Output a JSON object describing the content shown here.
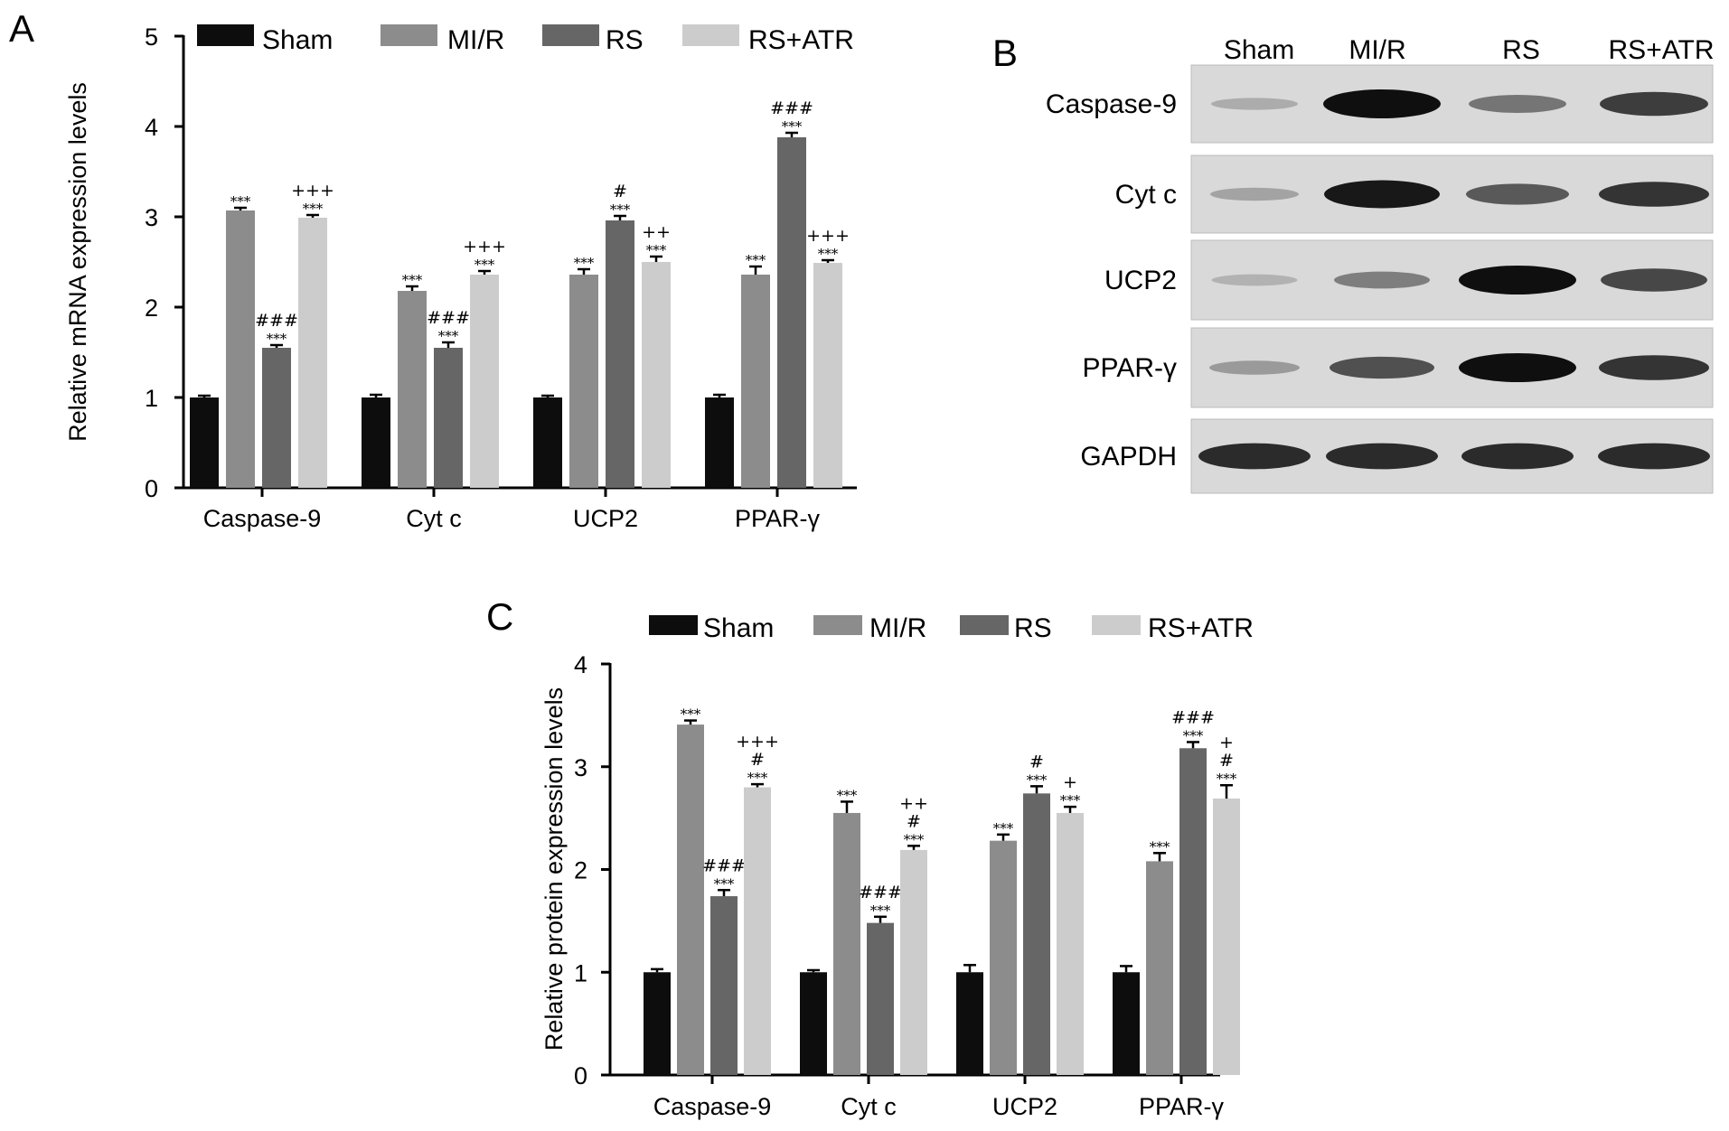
{
  "panels": {
    "a": {
      "letter": "A"
    },
    "b": {
      "letter": "B"
    },
    "c": {
      "letter": "C"
    }
  },
  "colors": {
    "Sham": "#0d0d0d",
    "MI/R": "#8c8c8c",
    "RS": "#666666",
    "RS+ATR": "#cccccc"
  },
  "blot": {
    "lanes": [
      "Sham",
      "MI/R",
      "RS",
      "RS+ATR"
    ],
    "rows": [
      {
        "label": "Caspase-9",
        "intensity": [
          0.15,
          1.0,
          0.45,
          0.75
        ]
      },
      {
        "label": "Cyt  c",
        "intensity": [
          0.2,
          0.95,
          0.6,
          0.8
        ]
      },
      {
        "label": "UCP2",
        "intensity": [
          0.12,
          0.4,
          1.0,
          0.7
        ]
      },
      {
        "label": "PPAR-γ",
        "intensity": [
          0.25,
          0.65,
          1.0,
          0.8
        ]
      },
      {
        "label": "GAPDH",
        "intensity": [
          0.85,
          0.85,
          0.85,
          0.85
        ]
      }
    ]
  },
  "chart_data": [
    {
      "type": "bar",
      "ylabel": "Relative mRNA expression levels",
      "ylim": [
        0,
        5
      ],
      "yticks": [
        0,
        1,
        2,
        3,
        4,
        5
      ],
      "categories": [
        "Caspase-9",
        "Cyt  c",
        "UCP2",
        "PPAR-γ"
      ],
      "legend": "top",
      "series": [
        {
          "name": "Sham",
          "values": [
            1.0,
            1.0,
            1.0,
            1.0
          ],
          "errors": [
            0.02,
            0.03,
            0.02,
            0.03
          ],
          "annotations": [
            [],
            [],
            [],
            []
          ]
        },
        {
          "name": "MI/R",
          "values": [
            3.07,
            2.18,
            2.36,
            2.36
          ],
          "errors": [
            0.03,
            0.05,
            0.06,
            0.09
          ],
          "annotations": [
            [
              "***"
            ],
            [
              "***"
            ],
            [
              "***"
            ],
            [
              "***"
            ]
          ]
        },
        {
          "name": "RS",
          "values": [
            1.55,
            1.55,
            2.96,
            3.88
          ],
          "errors": [
            0.03,
            0.06,
            0.05,
            0.05
          ],
          "annotations": [
            [
              "***",
              "###"
            ],
            [
              "***",
              "###"
            ],
            [
              "***",
              "#"
            ],
            [
              "***",
              "###"
            ]
          ]
        },
        {
          "name": "RS+ATR",
          "values": [
            2.99,
            2.36,
            2.5,
            2.49
          ],
          "errors": [
            0.03,
            0.04,
            0.06,
            0.03
          ],
          "annotations": [
            [
              "***",
              "+++"
            ],
            [
              "***",
              "+++"
            ],
            [
              "***",
              "++"
            ],
            [
              "***",
              "+++"
            ]
          ]
        }
      ]
    },
    {
      "type": "bar",
      "ylabel": "Relative protein expression levels",
      "ylim": [
        0,
        4
      ],
      "yticks": [
        0,
        1,
        2,
        3,
        4
      ],
      "categories": [
        "Caspase-9",
        "Cyt  c",
        "UCP2",
        "PPAR-γ"
      ],
      "legend": "top",
      "series": [
        {
          "name": "Sham",
          "values": [
            1.0,
            1.0,
            1.0,
            1.0
          ],
          "errors": [
            0.03,
            0.02,
            0.07,
            0.06
          ],
          "annotations": [
            [],
            [],
            [],
            []
          ]
        },
        {
          "name": "MI/R",
          "values": [
            3.41,
            2.55,
            2.28,
            2.08
          ],
          "errors": [
            0.04,
            0.11,
            0.06,
            0.08
          ],
          "annotations": [
            [
              "***"
            ],
            [
              "***"
            ],
            [
              "***"
            ],
            [
              "***"
            ]
          ]
        },
        {
          "name": "RS",
          "values": [
            1.74,
            1.48,
            2.74,
            3.18
          ],
          "errors": [
            0.06,
            0.06,
            0.07,
            0.06
          ],
          "annotations": [
            [
              "***",
              "###"
            ],
            [
              "***",
              "###"
            ],
            [
              "***",
              "#"
            ],
            [
              "***",
              "###"
            ]
          ]
        },
        {
          "name": "RS+ATR",
          "values": [
            2.8,
            2.19,
            2.55,
            2.69
          ],
          "errors": [
            0.03,
            0.04,
            0.06,
            0.13
          ],
          "annotations": [
            [
              "***",
              "#",
              "+++"
            ],
            [
              "***",
              "#",
              "++"
            ],
            [
              "***",
              "+"
            ],
            [
              "***",
              "#",
              "+"
            ]
          ]
        }
      ]
    }
  ]
}
